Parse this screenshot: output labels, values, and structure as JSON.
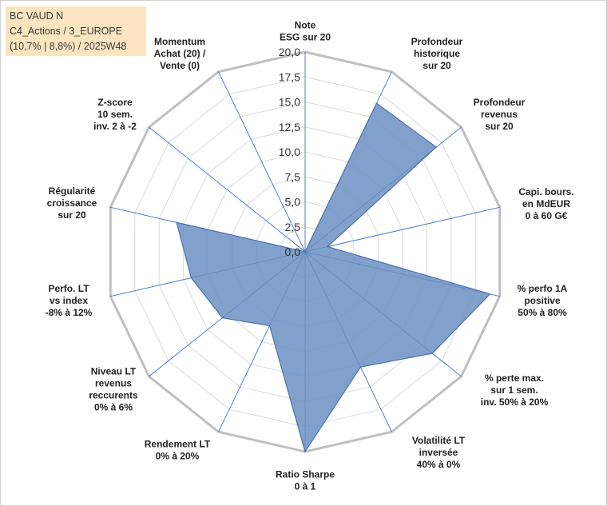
{
  "title": {
    "line1": "BC VAUD N",
    "line2": "C4_Actions / 3_EUROPE",
    "line3": "(10,7% | 8,8%) / 2025W48"
  },
  "chart_data": {
    "type": "radar",
    "range": [
      0,
      20
    ],
    "ticks": [
      "0,0",
      "2,5",
      "5,0",
      "7,5",
      "10,0",
      "12,5",
      "15,0",
      "17,5",
      "20,0"
    ],
    "axes": [
      {
        "label": [
          "Note",
          "ESG sur 20"
        ],
        "value": 0.0
      },
      {
        "label": [
          "Profondeur",
          "historique",
          "sur 20"
        ],
        "value": 16.5
      },
      {
        "label": [
          "Profondeur",
          "revenus",
          "sur 20"
        ],
        "value": 16.8
      },
      {
        "label": [
          "Capi. bours.",
          "en MdEUR",
          "0 à 60 G€"
        ],
        "value": 2.3
      },
      {
        "label": [
          "% perfo 1A",
          "positive",
          "50% à 80%"
        ],
        "value": 19.0
      },
      {
        "label": [
          "% perte max.",
          "sur 1 sem.",
          "inv. 50% à 20%"
        ],
        "value": 16.3
      },
      {
        "label": [
          "Volatilité LT",
          "inversée",
          "40% à 0%"
        ],
        "value": 12.8
      },
      {
        "label": [
          "Ratio Sharpe",
          "0 à 1"
        ],
        "value": 20.0
      },
      {
        "label": [
          "Rendement LT",
          "0% à 20%"
        ],
        "value": 8.2
      },
      {
        "label": [
          "Niveau LT",
          "revenus",
          "reccurents",
          "0% à 6%"
        ],
        "value": 10.6
      },
      {
        "label": [
          "Perfo. LT",
          "vs index",
          "-8% à 12%"
        ],
        "value": 11.7
      },
      {
        "label": [
          "Régularité",
          "croissance",
          "sur 20"
        ],
        "value": 13.2
      },
      {
        "label": [
          "Z-score",
          "10 sem.",
          "inv. 2 à -2"
        ],
        "value": 0.0
      },
      {
        "label": [
          "Momentum",
          "Achat (20) /",
          "Vente (0)"
        ],
        "value": 0.0
      }
    ],
    "colors": {
      "fill": "#6b8fc2",
      "stroke": "#4a72b0",
      "grid": "#d9d9d9",
      "outer": "#bfbfbf",
      "spoke": "#4472c4"
    }
  }
}
